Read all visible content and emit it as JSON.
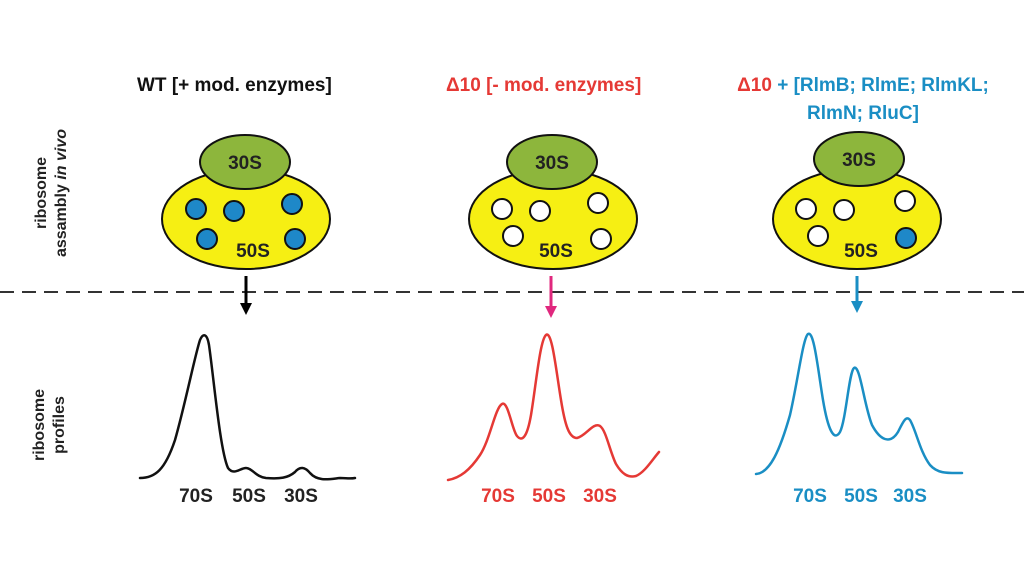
{
  "side_labels": {
    "assembly_line1": "ribosome",
    "assembly_line2_plain": "assambly ",
    "assembly_line2_italic": "in vivo",
    "profiles_line1": "ribosome",
    "profiles_line2": "profiles"
  },
  "panels": [
    {
      "title": "WT [+ mod. enzymes]",
      "subunit_small": "30S",
      "subunit_large": "50S",
      "dots": [
        "filled",
        "filled",
        "filled",
        "filled",
        "filled"
      ],
      "arrow_color": "#000000",
      "profile_color": "#111111",
      "peaks": [
        "70S",
        "50S",
        "30S"
      ],
      "label_color": "#222222"
    },
    {
      "title_prefix": "Δ10",
      "title_rest": " [- mod. enzymes]",
      "subunit_small": "30S",
      "subunit_large": "50S",
      "dots": [
        "empty",
        "empty",
        "empty",
        "empty",
        "empty"
      ],
      "arrow_color": "#e0287e",
      "profile_color": "#e53935",
      "peaks": [
        "70S",
        "50S",
        "30S"
      ],
      "label_color": "#e53935"
    },
    {
      "title_prefix": "Δ10",
      "title_plus": " + ",
      "title_line1": "[RlmB; RlmE; RlmKL;",
      "title_line2": "RlmN; RluC]",
      "subunit_small": "30S",
      "subunit_large": "50S",
      "dots": [
        "empty",
        "empty",
        "empty",
        "empty",
        "filled"
      ],
      "arrow_color": "#1a8ec4",
      "profile_color": "#1a8ec4",
      "peaks": [
        "70S",
        "50S",
        "30S"
      ],
      "label_color": "#1a8ec4"
    }
  ],
  "colors": {
    "yellow": "#f6ef13",
    "green": "#8db63c",
    "dot_blue": "#1e88c8",
    "red": "#e53935",
    "blue": "#1a8ec4"
  }
}
